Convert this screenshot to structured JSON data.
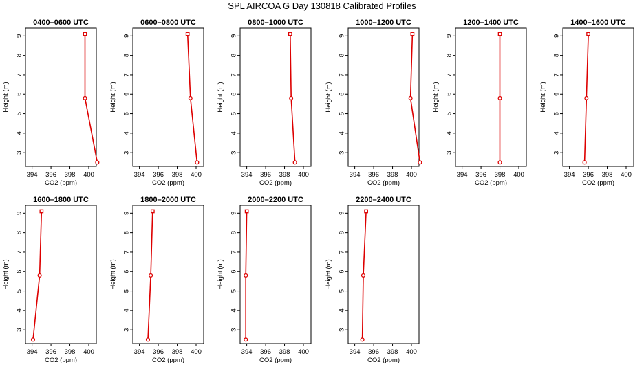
{
  "figure": {
    "title": "SPL AIRCOA G  Day 130818  Calibrated Profiles"
  },
  "chart_data": {
    "type": "line",
    "xlabel": "CO2 (ppm)",
    "ylabel": "Height (m)",
    "xlim": [
      393.3,
      400.8
    ],
    "ylim": [
      2.3,
      9.4
    ],
    "xticks": [
      394,
      396,
      398,
      400
    ],
    "yticks": [
      3,
      4,
      5,
      6,
      7,
      8,
      9
    ],
    "grid": false,
    "line_color": "#dd0000",
    "panels": [
      {
        "title": "0400–0600 UTC",
        "points": [
          [
            400.9,
            2.5
          ],
          [
            399.6,
            5.8
          ],
          [
            399.6,
            9.1
          ]
        ]
      },
      {
        "title": "0600–0800 UTC",
        "points": [
          [
            400.1,
            2.5
          ],
          [
            399.4,
            5.8
          ],
          [
            399.1,
            9.1
          ]
        ]
      },
      {
        "title": "0800–1000 UTC",
        "points": [
          [
            399.1,
            2.5
          ],
          [
            398.7,
            5.8
          ],
          [
            398.6,
            9.1
          ]
        ]
      },
      {
        "title": "1000–1200 UTC",
        "points": [
          [
            400.9,
            2.5
          ],
          [
            399.9,
            5.8
          ],
          [
            400.1,
            9.1
          ]
        ]
      },
      {
        "title": "1200–1400 UTC",
        "points": [
          [
            398.0,
            2.5
          ],
          [
            398.0,
            5.8
          ],
          [
            398.0,
            9.1
          ]
        ]
      },
      {
        "title": "1400–1600 UTC",
        "points": [
          [
            395.6,
            2.5
          ],
          [
            395.8,
            5.8
          ],
          [
            396.0,
            9.1
          ]
        ]
      },
      {
        "title": "1600–1800 UTC",
        "points": [
          [
            394.1,
            2.5
          ],
          [
            394.8,
            5.8
          ],
          [
            395.0,
            9.1
          ]
        ]
      },
      {
        "title": "1800–2000 UTC",
        "points": [
          [
            394.9,
            2.5
          ],
          [
            395.2,
            5.8
          ],
          [
            395.4,
            9.1
          ]
        ]
      },
      {
        "title": "2000–2200 UTC",
        "points": [
          [
            393.9,
            2.5
          ],
          [
            393.9,
            5.8
          ],
          [
            394.0,
            9.1
          ]
        ]
      },
      {
        "title": "2200–2400 UTC",
        "points": [
          [
            394.8,
            2.5
          ],
          [
            394.9,
            5.8
          ],
          [
            395.2,
            9.1
          ]
        ]
      }
    ]
  }
}
